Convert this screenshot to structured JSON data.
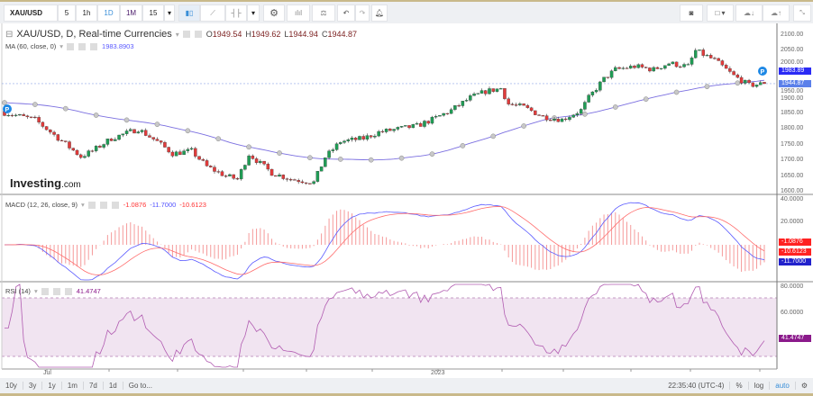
{
  "toolbar": {
    "symbol": "XAU/USD",
    "intervals": [
      "5",
      "1h",
      "1D",
      "1M",
      "15"
    ],
    "active_interval": "1D",
    "icons": [
      "candlestick-icon",
      "line-chart-icon",
      "bar-type-icon",
      "dropdown-icon",
      "settings-gear-icon",
      "indicators-icon",
      "compare-scale-icon",
      "undo-icon",
      "redo-icon",
      "alert-icon"
    ],
    "right_icons": [
      "camera-icon",
      "color-box-icon",
      "cloud-download-icon",
      "cloud-upload-icon",
      "fullscreen-icon"
    ]
  },
  "legend": {
    "title": "XAU/USD, D, Real-time Currencies",
    "o_label": "O",
    "o": "1949.54",
    "h_label": "H",
    "h": "1949.62",
    "l_label": "L",
    "l": "1944.94",
    "c_label": "C",
    "c": "1944.87",
    "ma_label": "MA (60, close, 0)",
    "ma_value": "1983.8903",
    "macd_label": "MACD (12, 26, close, 9)",
    "macd_hist": "-1.0876",
    "macd_line": "-11.7000",
    "macd_signal": "-10.6123",
    "rsi_label": "RSI (14)",
    "rsi_value": "41.4747"
  },
  "logo": {
    "brand": "Investing",
    "suffix": ".com"
  },
  "price_axis": {
    "ticks": [
      "2100.00",
      "2050.00",
      "2000.00",
      "1950.00",
      "1900.00",
      "1850.00",
      "1800.00",
      "1750.00",
      "1700.00",
      "1650.00",
      "1600.00"
    ],
    "ma_tag": "1983.89",
    "close_tag": "1944.87"
  },
  "macd_axis": {
    "ticks": [
      "40.0000",
      "20.0000"
    ],
    "tags": [
      "-1.0876",
      "-10.6123",
      "-11.7000"
    ]
  },
  "rsi_axis": {
    "ticks": [
      "80.0000",
      "60.0000"
    ],
    "tag": "41.4747"
  },
  "time_axis": {
    "labels": [
      "Jul",
      "2023"
    ]
  },
  "bottombar": {
    "ranges": [
      "10y",
      "3y",
      "1y",
      "1m",
      "7d",
      "1d",
      "Go to..."
    ],
    "clock": "22:35:40 (UTC-4)",
    "percent": "%",
    "log": "log",
    "auto": "auto"
  },
  "colors": {
    "up": "#1f9d55",
    "down": "#e23b3b",
    "ma": "#7b6fe0",
    "macd": "#5a5aff",
    "signal": "#ff6b6b",
    "rsi": "#b15cb1",
    "rsi_band": "#f1e4f1"
  },
  "chart_data": {
    "type": "candlestick",
    "candles": 200,
    "price_ylim": [
      1600,
      2100
    ],
    "anchor_closes": [
      [
        0,
        1852
      ],
      [
        8,
        1830
      ],
      [
        15,
        1762
      ],
      [
        20,
        1712
      ],
      [
        23,
        1730
      ],
      [
        28,
        1770
      ],
      [
        35,
        1800
      ],
      [
        40,
        1760
      ],
      [
        44,
        1722
      ],
      [
        49,
        1730
      ],
      [
        53,
        1680
      ],
      [
        58,
        1650
      ],
      [
        61,
        1640
      ],
      [
        64,
        1720
      ],
      [
        67,
        1690
      ],
      [
        70,
        1660
      ],
      [
        75,
        1640
      ],
      [
        81,
        1630
      ],
      [
        84,
        1710
      ],
      [
        88,
        1760
      ],
      [
        94,
        1770
      ],
      [
        98,
        1790
      ],
      [
        103,
        1800
      ],
      [
        108,
        1810
      ],
      [
        112,
        1830
      ],
      [
        117,
        1860
      ],
      [
        122,
        1900
      ],
      [
        126,
        1920
      ],
      [
        130,
        1930
      ],
      [
        132,
        1880
      ],
      [
        136,
        1870
      ],
      [
        141,
        1840
      ],
      [
        146,
        1830
      ],
      [
        151,
        1860
      ],
      [
        153,
        1900
      ],
      [
        157,
        1960
      ],
      [
        160,
        1990
      ],
      [
        165,
        2000
      ],
      [
        170,
        1990
      ],
      [
        174,
        2010
      ],
      [
        179,
        2000
      ],
      [
        181,
        2050
      ],
      [
        186,
        2020
      ],
      [
        191,
        1970
      ],
      [
        195,
        1940
      ],
      [
        199,
        1945
      ]
    ],
    "last_candle": {
      "open": 1949.54,
      "high": 1949.62,
      "low": 1944.94,
      "close": 1944.87
    },
    "ma60_last": 1983.8903,
    "macd": {
      "hist": -1.0876,
      "macd": -11.7,
      "signal": -10.6123,
      "ylim": [
        -40,
        40
      ]
    },
    "rsi": {
      "value": 41.4747,
      "band": [
        30,
        70
      ],
      "ylim": [
        20,
        80
      ]
    }
  }
}
